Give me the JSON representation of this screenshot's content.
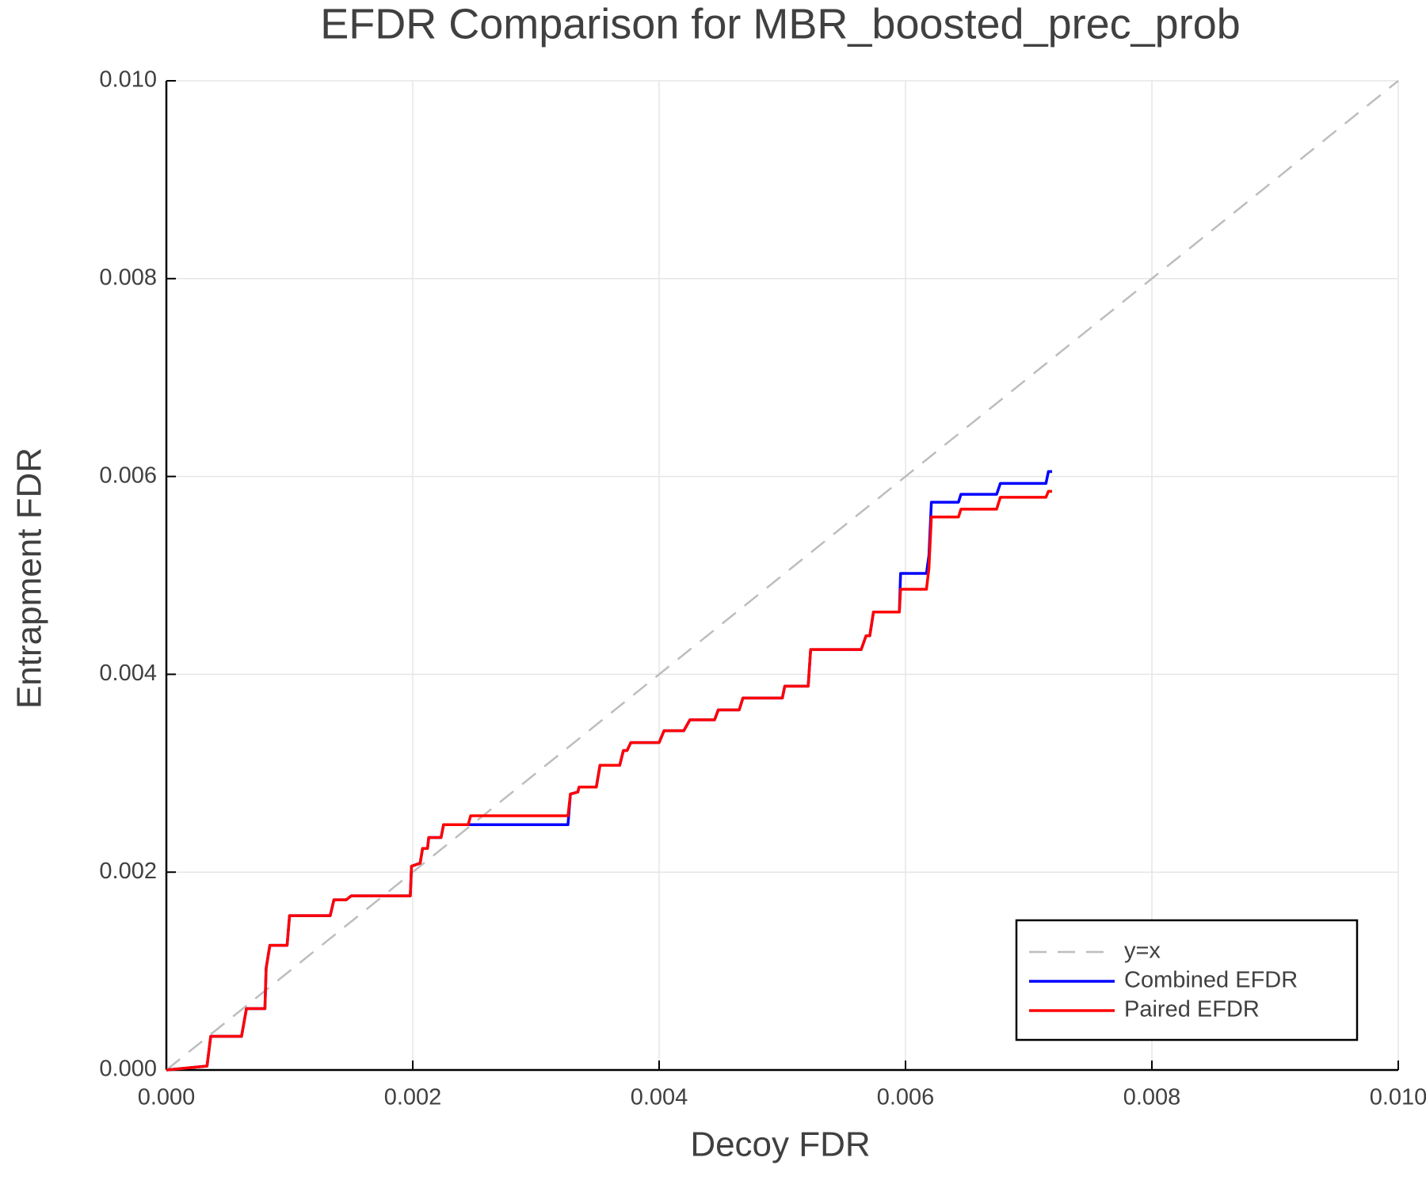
{
  "chart_data": {
    "type": "line",
    "title": "EFDR Comparison for MBR_boosted_prec_prob",
    "xlabel": "Decoy FDR",
    "ylabel": "Entrapment FDR",
    "xlim": [
      0,
      0.01
    ],
    "ylim": [
      0,
      0.01
    ],
    "xticks": [
      {
        "value": 0,
        "label": "0.000"
      },
      {
        "value": 0.002,
        "label": "0.002"
      },
      {
        "value": 0.004,
        "label": "0.004"
      },
      {
        "value": 0.006,
        "label": "0.006"
      },
      {
        "value": 0.008,
        "label": "0.008"
      },
      {
        "value": 0.01,
        "label": "0.010"
      }
    ],
    "yticks": [
      {
        "value": 0,
        "label": "0.000"
      },
      {
        "value": 0.002,
        "label": "0.002"
      },
      {
        "value": 0.004,
        "label": "0.004"
      },
      {
        "value": 0.006,
        "label": "0.006"
      },
      {
        "value": 0.008,
        "label": "0.008"
      },
      {
        "value": 0.01,
        "label": "0.010"
      }
    ],
    "grid": true,
    "legend": "lower right",
    "series": [
      {
        "name": "y=x",
        "color": "#bdbdbd",
        "dashed": true,
        "x": [
          0,
          0.01
        ],
        "values": [
          0,
          0.01
        ]
      },
      {
        "name": "Combined EFDR",
        "color": "#0000ff",
        "x": [
          0,
          0.00033,
          0.00036,
          0.00061,
          0.00065,
          0.0008,
          0.00081,
          0.00084,
          0.00098,
          0.001,
          0.00133,
          0.00136,
          0.00146,
          0.0015,
          0.00198,
          0.00199,
          0.00206,
          0.00208,
          0.00212,
          0.00213,
          0.00223,
          0.00225,
          0.00245,
          0.00247,
          0.00326,
          0.00328,
          0.00334,
          0.00335,
          0.00349,
          0.00352,
          0.00368,
          0.00371,
          0.00374,
          0.00377,
          0.004,
          0.00404,
          0.0042,
          0.00425,
          0.00445,
          0.00448,
          0.00465,
          0.00468,
          0.005,
          0.00502,
          0.00521,
          0.00523,
          0.00564,
          0.00568,
          0.00571,
          0.00574,
          0.00595,
          0.00596,
          0.00617,
          0.00619,
          0.00621,
          0.00643,
          0.00645,
          0.00674,
          0.00677,
          0.00714,
          0.00716,
          0.00719
        ],
        "values": [
          0,
          4e-05,
          0.00034,
          0.00034,
          0.00062,
          0.00062,
          0.00103,
          0.00126,
          0.00126,
          0.00156,
          0.00156,
          0.00172,
          0.00172,
          0.00176,
          0.00176,
          0.00206,
          0.00209,
          0.00224,
          0.00224,
          0.00235,
          0.00235,
          0.00248,
          0.00248,
          0.00248,
          0.00248,
          0.00279,
          0.00281,
          0.00286,
          0.00286,
          0.00308,
          0.00308,
          0.00323,
          0.00323,
          0.00331,
          0.00331,
          0.00343,
          0.00343,
          0.00354,
          0.00354,
          0.00364,
          0.00364,
          0.00376,
          0.00376,
          0.00388,
          0.00388,
          0.00425,
          0.00425,
          0.00439,
          0.00439,
          0.00463,
          0.00463,
          0.00502,
          0.00502,
          0.0052,
          0.00574,
          0.00574,
          0.00582,
          0.00582,
          0.00593,
          0.00593,
          0.00605,
          0.00605
        ]
      },
      {
        "name": "Paired EFDR",
        "color": "#ff0000",
        "x": [
          0,
          0.00033,
          0.00036,
          0.00061,
          0.00065,
          0.0008,
          0.00081,
          0.00084,
          0.00098,
          0.001,
          0.00133,
          0.00136,
          0.00146,
          0.0015,
          0.00198,
          0.00199,
          0.00206,
          0.00208,
          0.00212,
          0.00213,
          0.00223,
          0.00225,
          0.00245,
          0.00247,
          0.00326,
          0.00328,
          0.00334,
          0.00335,
          0.00349,
          0.00352,
          0.00368,
          0.00371,
          0.00374,
          0.00377,
          0.004,
          0.00404,
          0.0042,
          0.00425,
          0.00445,
          0.00448,
          0.00465,
          0.00468,
          0.005,
          0.00502,
          0.00521,
          0.00523,
          0.00564,
          0.00568,
          0.00571,
          0.00574,
          0.00595,
          0.00596,
          0.00617,
          0.00619,
          0.00621,
          0.00643,
          0.00645,
          0.00674,
          0.00677,
          0.00714,
          0.00716,
          0.00719
        ],
        "values": [
          0,
          4e-05,
          0.00034,
          0.00034,
          0.00062,
          0.00062,
          0.00103,
          0.00126,
          0.00126,
          0.00156,
          0.00156,
          0.00172,
          0.00172,
          0.00176,
          0.00176,
          0.00206,
          0.00209,
          0.00224,
          0.00224,
          0.00235,
          0.00235,
          0.00248,
          0.00248,
          0.00257,
          0.00257,
          0.00279,
          0.00281,
          0.00286,
          0.00286,
          0.00308,
          0.00308,
          0.00323,
          0.00323,
          0.00331,
          0.00331,
          0.00343,
          0.00343,
          0.00354,
          0.00354,
          0.00364,
          0.00364,
          0.00376,
          0.00376,
          0.00388,
          0.00388,
          0.00425,
          0.00425,
          0.00439,
          0.00439,
          0.00463,
          0.00463,
          0.00486,
          0.00486,
          0.00507,
          0.00559,
          0.00559,
          0.00567,
          0.00567,
          0.00579,
          0.00579,
          0.00585,
          0.00585
        ]
      }
    ]
  }
}
